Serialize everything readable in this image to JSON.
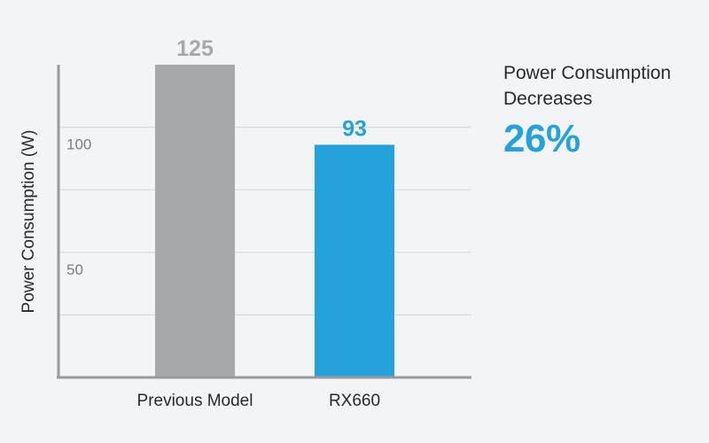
{
  "chart_data": {
    "type": "bar",
    "title": "",
    "xlabel": "",
    "ylabel": "Power Consumption (W)",
    "categories": [
      "Previous Model",
      "RX660"
    ],
    "values": [
      125,
      93
    ],
    "bar_colors": [
      "#a7a8aa",
      "#24a2dc"
    ],
    "value_label_colors": [
      "#a7a8aa",
      "#24a2dc"
    ],
    "ylim": [
      0,
      125
    ],
    "yticks": [
      50,
      100
    ],
    "grid": true,
    "data_labels": [
      "125",
      "93"
    ]
  },
  "callout": {
    "line1": "Power Consumption",
    "line2": "Decreases",
    "value": "26%",
    "value_color": "#24a2dc"
  }
}
